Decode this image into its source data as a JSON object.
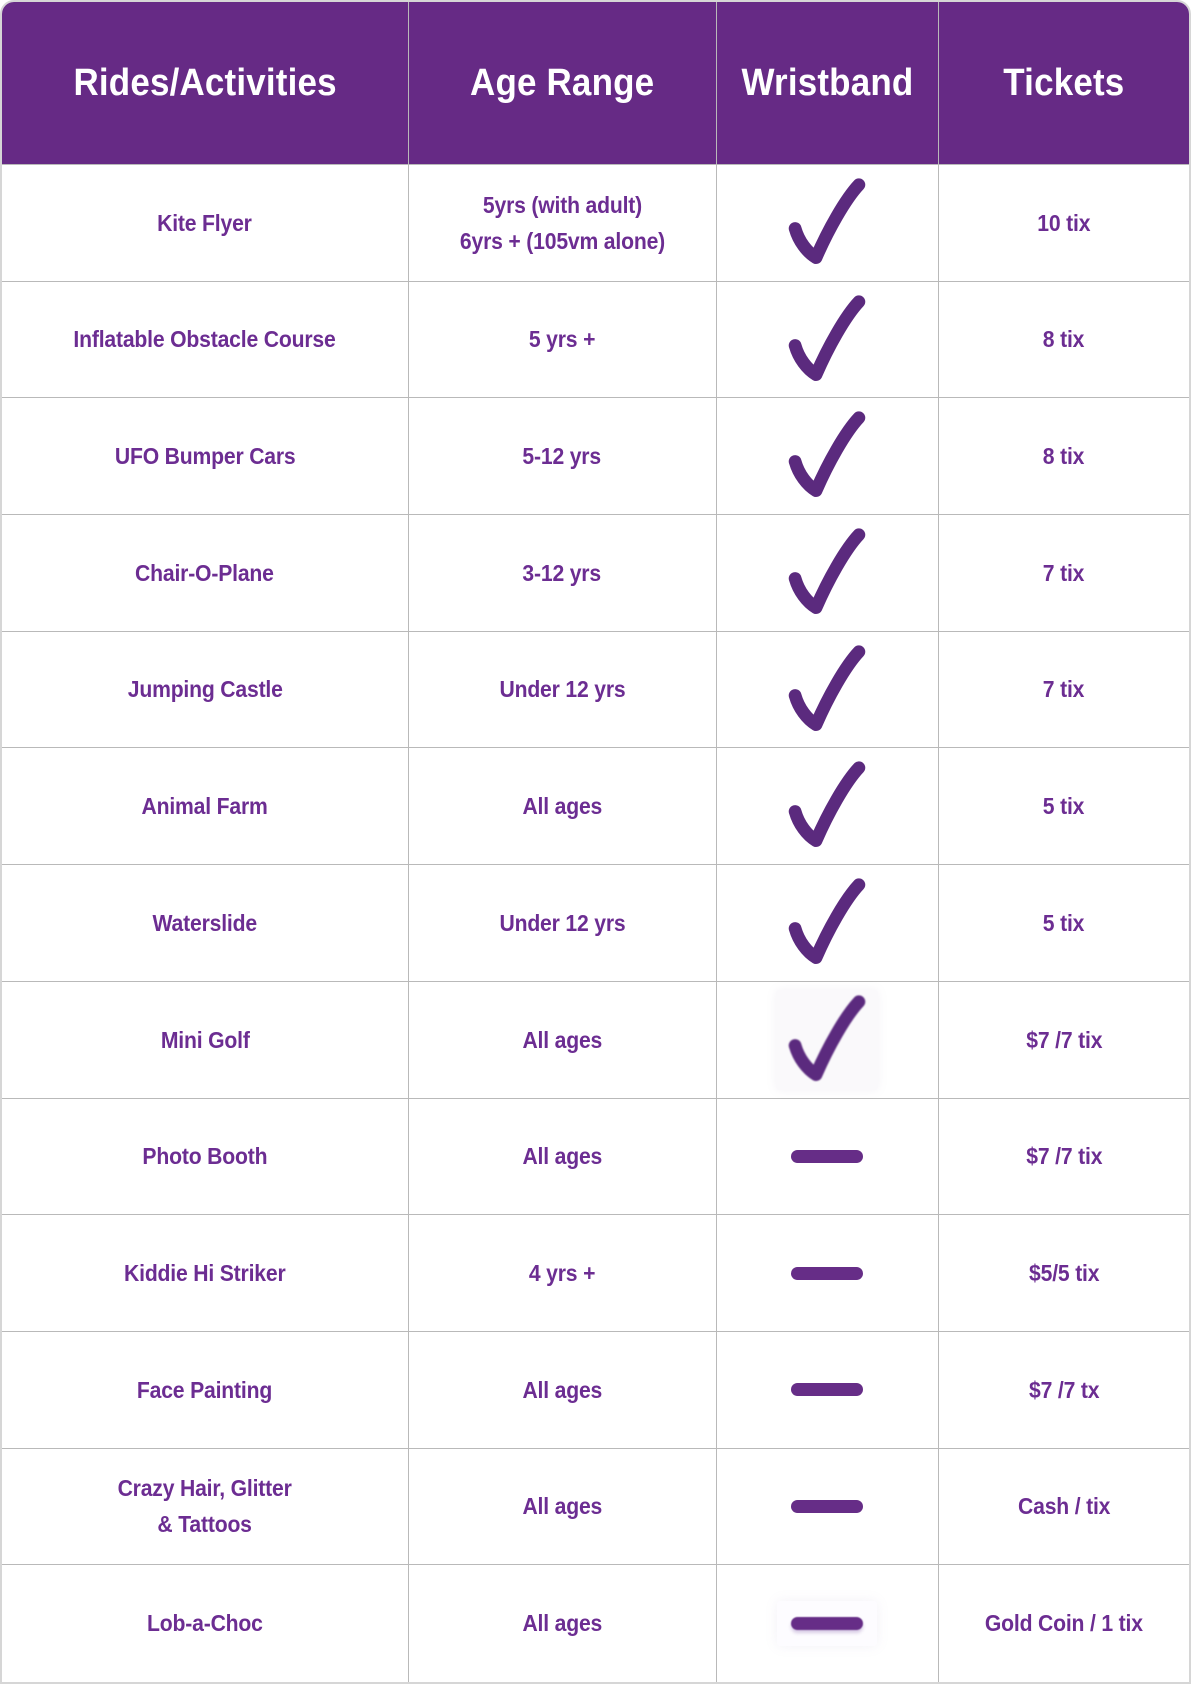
{
  "table": {
    "columns": [
      {
        "label": "Rides/Activities"
      },
      {
        "label": "Age Range"
      },
      {
        "label": "Wristband"
      },
      {
        "label": "Tickets"
      }
    ],
    "rows": [
      {
        "name_lines": [
          "Kite Flyer"
        ],
        "age_lines": [
          "5yrs (with adult)",
          "6yrs + (105vm alone)"
        ],
        "wristband": "check",
        "wristband_photo": false,
        "tickets": "10 tix"
      },
      {
        "name_lines": [
          "Inflatable Obstacle Course"
        ],
        "age_lines": [
          "5 yrs +"
        ],
        "wristband": "check",
        "wristband_photo": false,
        "tickets": "8 tix"
      },
      {
        "name_lines": [
          "UFO Bumper Cars"
        ],
        "age_lines": [
          "5-12 yrs"
        ],
        "wristband": "check",
        "wristband_photo": false,
        "tickets": "8 tix"
      },
      {
        "name_lines": [
          "Chair-O-Plane"
        ],
        "age_lines": [
          "3-12 yrs"
        ],
        "wristband": "check",
        "wristband_photo": false,
        "tickets": "7 tix"
      },
      {
        "name_lines": [
          "Jumping Castle"
        ],
        "age_lines": [
          "Under 12 yrs"
        ],
        "wristband": "check",
        "wristband_photo": false,
        "tickets": "7 tix"
      },
      {
        "name_lines": [
          "Animal Farm"
        ],
        "age_lines": [
          "All ages"
        ],
        "wristband": "check",
        "wristband_photo": false,
        "tickets": "5 tix"
      },
      {
        "name_lines": [
          "Waterslide"
        ],
        "age_lines": [
          "Under 12 yrs"
        ],
        "wristband": "check",
        "wristband_photo": false,
        "tickets": "5 tix"
      },
      {
        "name_lines": [
          "Mini Golf"
        ],
        "age_lines": [
          "All ages"
        ],
        "wristband": "check",
        "wristband_photo": true,
        "tickets": "$7 /7 tix"
      },
      {
        "name_lines": [
          "Photo Booth"
        ],
        "age_lines": [
          "All ages"
        ],
        "wristband": "dash",
        "wristband_photo": false,
        "tickets": "$7 /7 tix"
      },
      {
        "name_lines": [
          "Kiddie Hi Striker"
        ],
        "age_lines": [
          "4 yrs +"
        ],
        "wristband": "dash",
        "wristband_photo": false,
        "tickets": "$5/5 tix"
      },
      {
        "name_lines": [
          "Face Painting"
        ],
        "age_lines": [
          "All ages"
        ],
        "wristband": "dash",
        "wristband_photo": false,
        "tickets": "$7 /7 tx"
      },
      {
        "name_lines": [
          "Crazy Hair, Glitter",
          "& Tattoos"
        ],
        "age_lines": [
          "All ages"
        ],
        "wristband": "dash",
        "wristband_photo": false,
        "tickets": "Cash / tix"
      },
      {
        "name_lines": [
          "Lob-a-Choc"
        ],
        "age_lines": [
          "All ages"
        ],
        "wristband": "dash",
        "wristband_photo": true,
        "tickets": "Gold Coin / 1 tix"
      }
    ],
    "wristband_glyphs": {
      "check": "checkmark-icon",
      "dash": "dash-icon"
    }
  },
  "colors": {
    "header_bg": "#662a85",
    "header_text": "#ffffff",
    "body_text": "#6c2d92",
    "checkmark": "#5b2a7e",
    "dash": "#662d87",
    "grid_line": "#b9b9b9",
    "outer_border": "#d6d6d6"
  }
}
